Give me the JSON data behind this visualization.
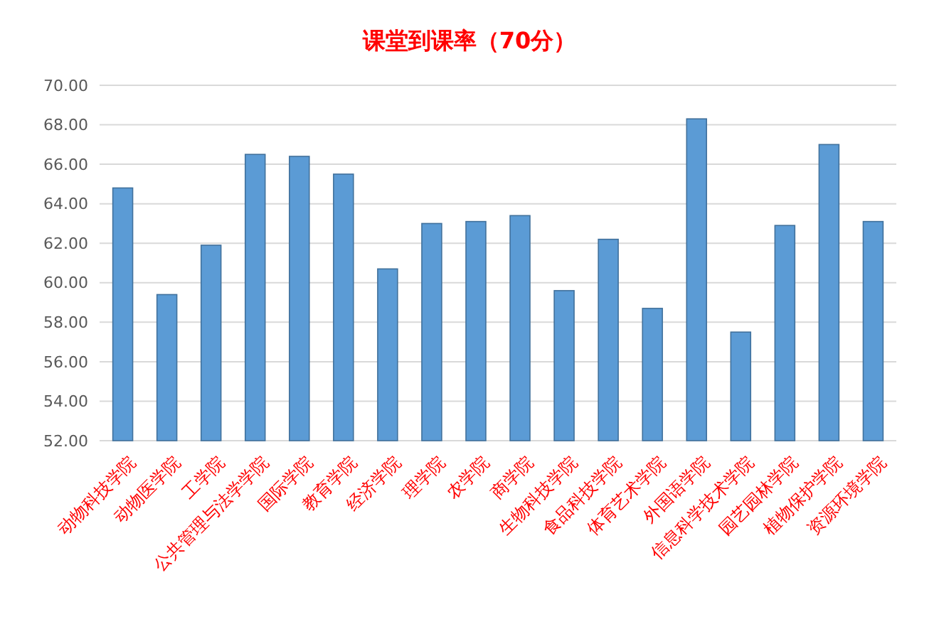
{
  "chart_data": {
    "type": "bar",
    "title": "课堂到课率（70分）",
    "categories": [
      "动物科技学院",
      "动物医学院",
      "工学院",
      "公共管理与法学学院",
      "国际学院",
      "教育学院",
      "经济学院",
      "理学院",
      "农学院",
      "商学院",
      "生物科技学院",
      "食品科技学院",
      "体育艺术学院",
      "外国语学院",
      "信息科学技术学院",
      "园艺园林学院",
      "植物保护学院",
      "资源环境学院"
    ],
    "values": [
      64.8,
      59.4,
      61.9,
      66.5,
      66.4,
      65.5,
      60.7,
      63.0,
      63.1,
      63.4,
      59.6,
      62.2,
      58.7,
      68.3,
      57.5,
      62.9,
      67.0,
      63.1
    ],
    "color": "#5b9bd5",
    "ylim": [
      52,
      70
    ],
    "yticks": [
      {
        "value": 52,
        "label": "52.00"
      },
      {
        "value": 54,
        "label": "54.00"
      },
      {
        "value": 56,
        "label": "56.00"
      },
      {
        "value": 58,
        "label": "58.00"
      },
      {
        "value": 60,
        "label": "60.00"
      },
      {
        "value": 62,
        "label": "62.00"
      },
      {
        "value": 64,
        "label": "64.00"
      },
      {
        "value": 66,
        "label": "66.00"
      },
      {
        "value": 68,
        "label": "68.00"
      },
      {
        "value": 70,
        "label": "70.00"
      }
    ],
    "grid": true
  }
}
